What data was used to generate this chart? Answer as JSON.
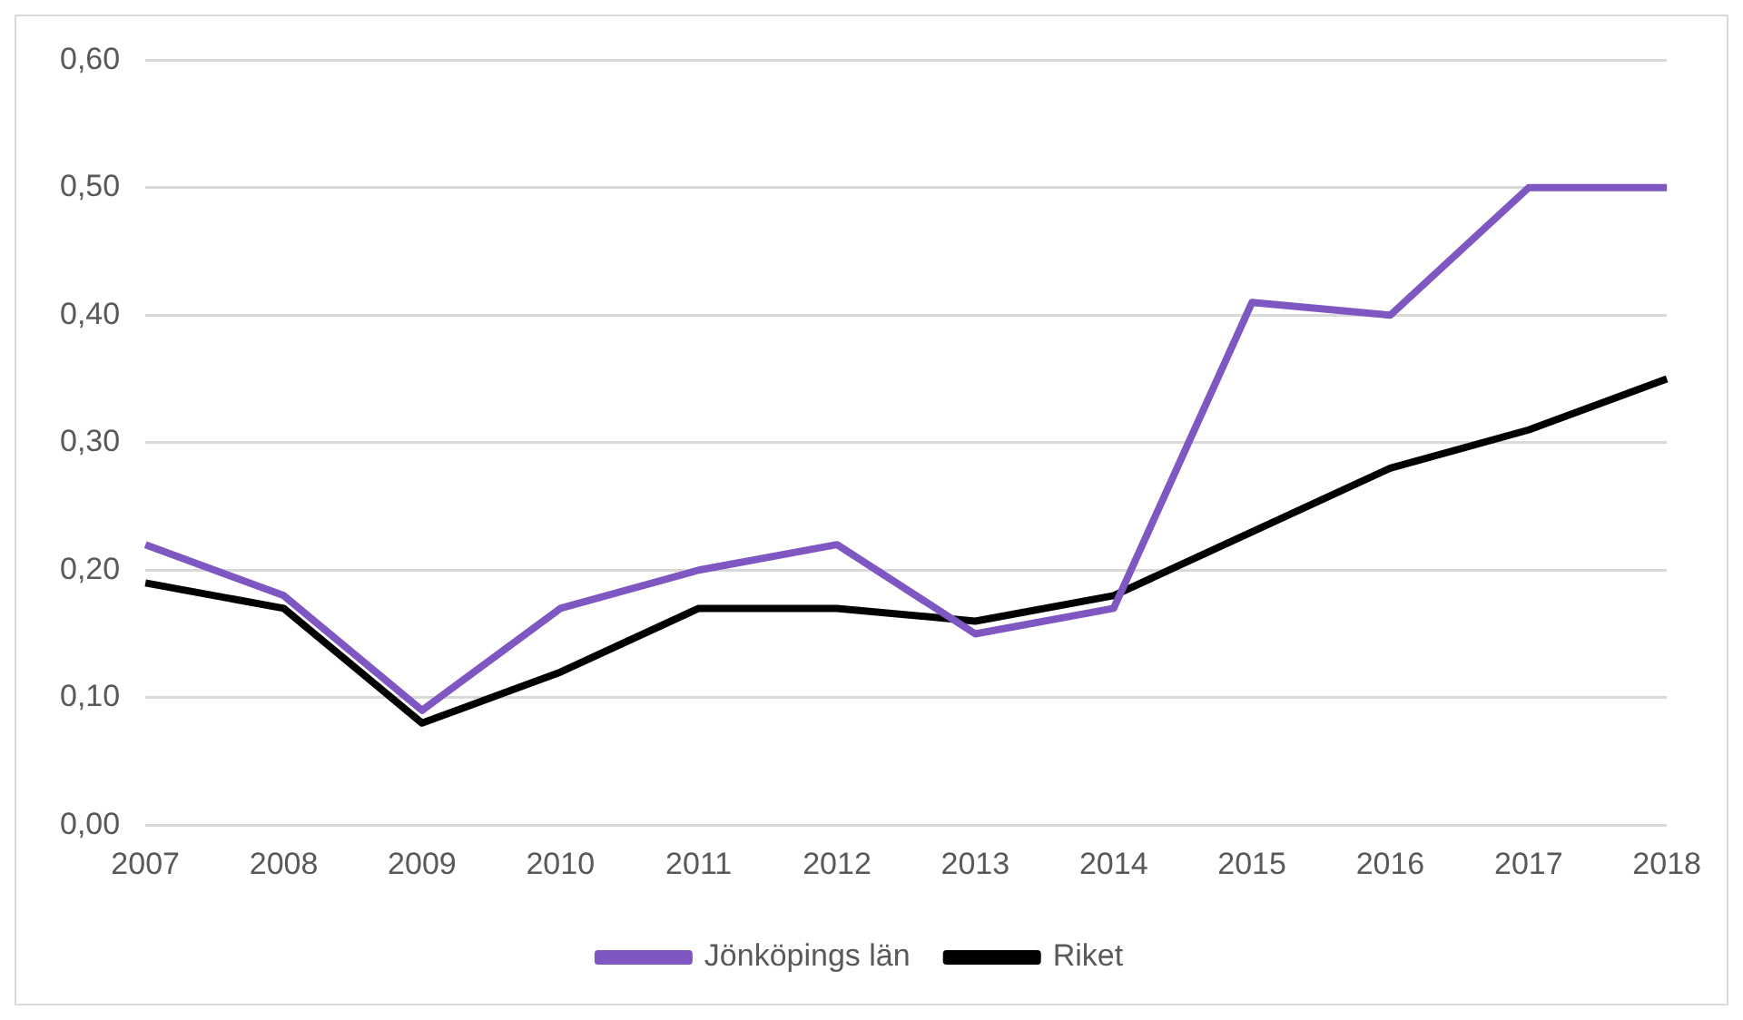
{
  "chart_data": {
    "type": "line",
    "categories": [
      "2007",
      "2008",
      "2009",
      "2010",
      "2011",
      "2012",
      "2013",
      "2014",
      "2015",
      "2016",
      "2017",
      "2018"
    ],
    "series": [
      {
        "name": "Jönköpings län",
        "color": "#7e57c2",
        "values": [
          0.22,
          0.18,
          0.09,
          0.17,
          0.2,
          0.22,
          0.15,
          0.17,
          0.41,
          0.4,
          0.5,
          0.5
        ]
      },
      {
        "name": "Riket",
        "color": "#000000",
        "values": [
          0.19,
          0.17,
          0.08,
          0.12,
          0.17,
          0.17,
          0.16,
          0.18,
          0.23,
          0.28,
          0.31,
          0.35
        ]
      }
    ],
    "ylim": [
      0,
      0.6
    ],
    "yticks": [
      {
        "value": 0,
        "label": "0,00"
      },
      {
        "value": 0.1,
        "label": "0,10"
      },
      {
        "value": 0.2,
        "label": "0,20"
      },
      {
        "value": 0.3,
        "label": "0,30"
      },
      {
        "value": 0.4,
        "label": "0,40"
      },
      {
        "value": 0.5,
        "label": "0,50"
      },
      {
        "value": 0.6,
        "label": "0,60"
      }
    ],
    "grid": "y",
    "legend": "bottom",
    "marker": "none",
    "line_style": "solid"
  }
}
